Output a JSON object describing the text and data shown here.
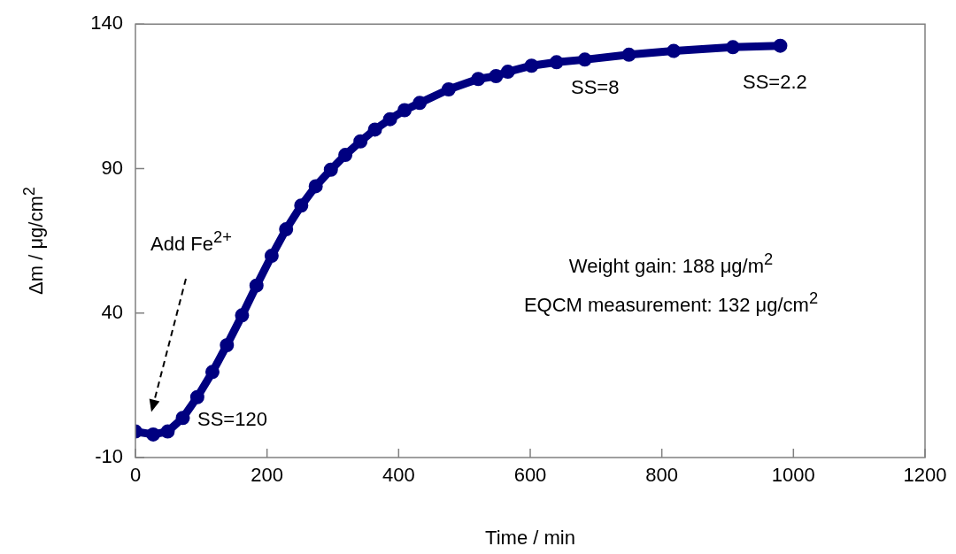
{
  "chart_data": {
    "type": "line",
    "xlabel": "Time / min",
    "ylabel": "Δm / μg/cm$^{2}$",
    "x": [
      0,
      27,
      49,
      72,
      94,
      117,
      139,
      162,
      184,
      207,
      229,
      252,
      274,
      297,
      319,
      342,
      364,
      387,
      409,
      432,
      476,
      521,
      548,
      566,
      602,
      640,
      683,
      750,
      818,
      908,
      980
    ],
    "series": [
      {
        "color": "#000080",
        "values": [
          -1,
          -2,
          -1,
          3.7,
          10.9,
          19.6,
          28.9,
          39.2,
          49.5,
          59.8,
          69,
          77.2,
          83.9,
          89.6,
          94.7,
          99.4,
          103.5,
          107.1,
          110.2,
          112.7,
          117.4,
          121,
          122,
          123.5,
          125.6,
          126.8,
          127.7,
          129.4,
          130.7,
          132,
          132.5
        ]
      }
    ],
    "xlim": [
      0,
      1200
    ],
    "xticks": [
      0,
      200,
      400,
      600,
      800,
      1000,
      1200
    ],
    "ylim": [
      -10,
      140
    ],
    "yticks": [
      -10,
      40,
      90,
      140
    ],
    "marker": "circle",
    "line_style": "solid",
    "grid": false,
    "legend": false,
    "annotations": [
      "Add Fe$^{2+}$",
      "SS=120",
      "SS=8",
      "SS=2.2",
      "Weight gain: 188 μg/m$^{2}$",
      "EQCM measurement: 132 μg/cm$^{2}$"
    ]
  }
}
